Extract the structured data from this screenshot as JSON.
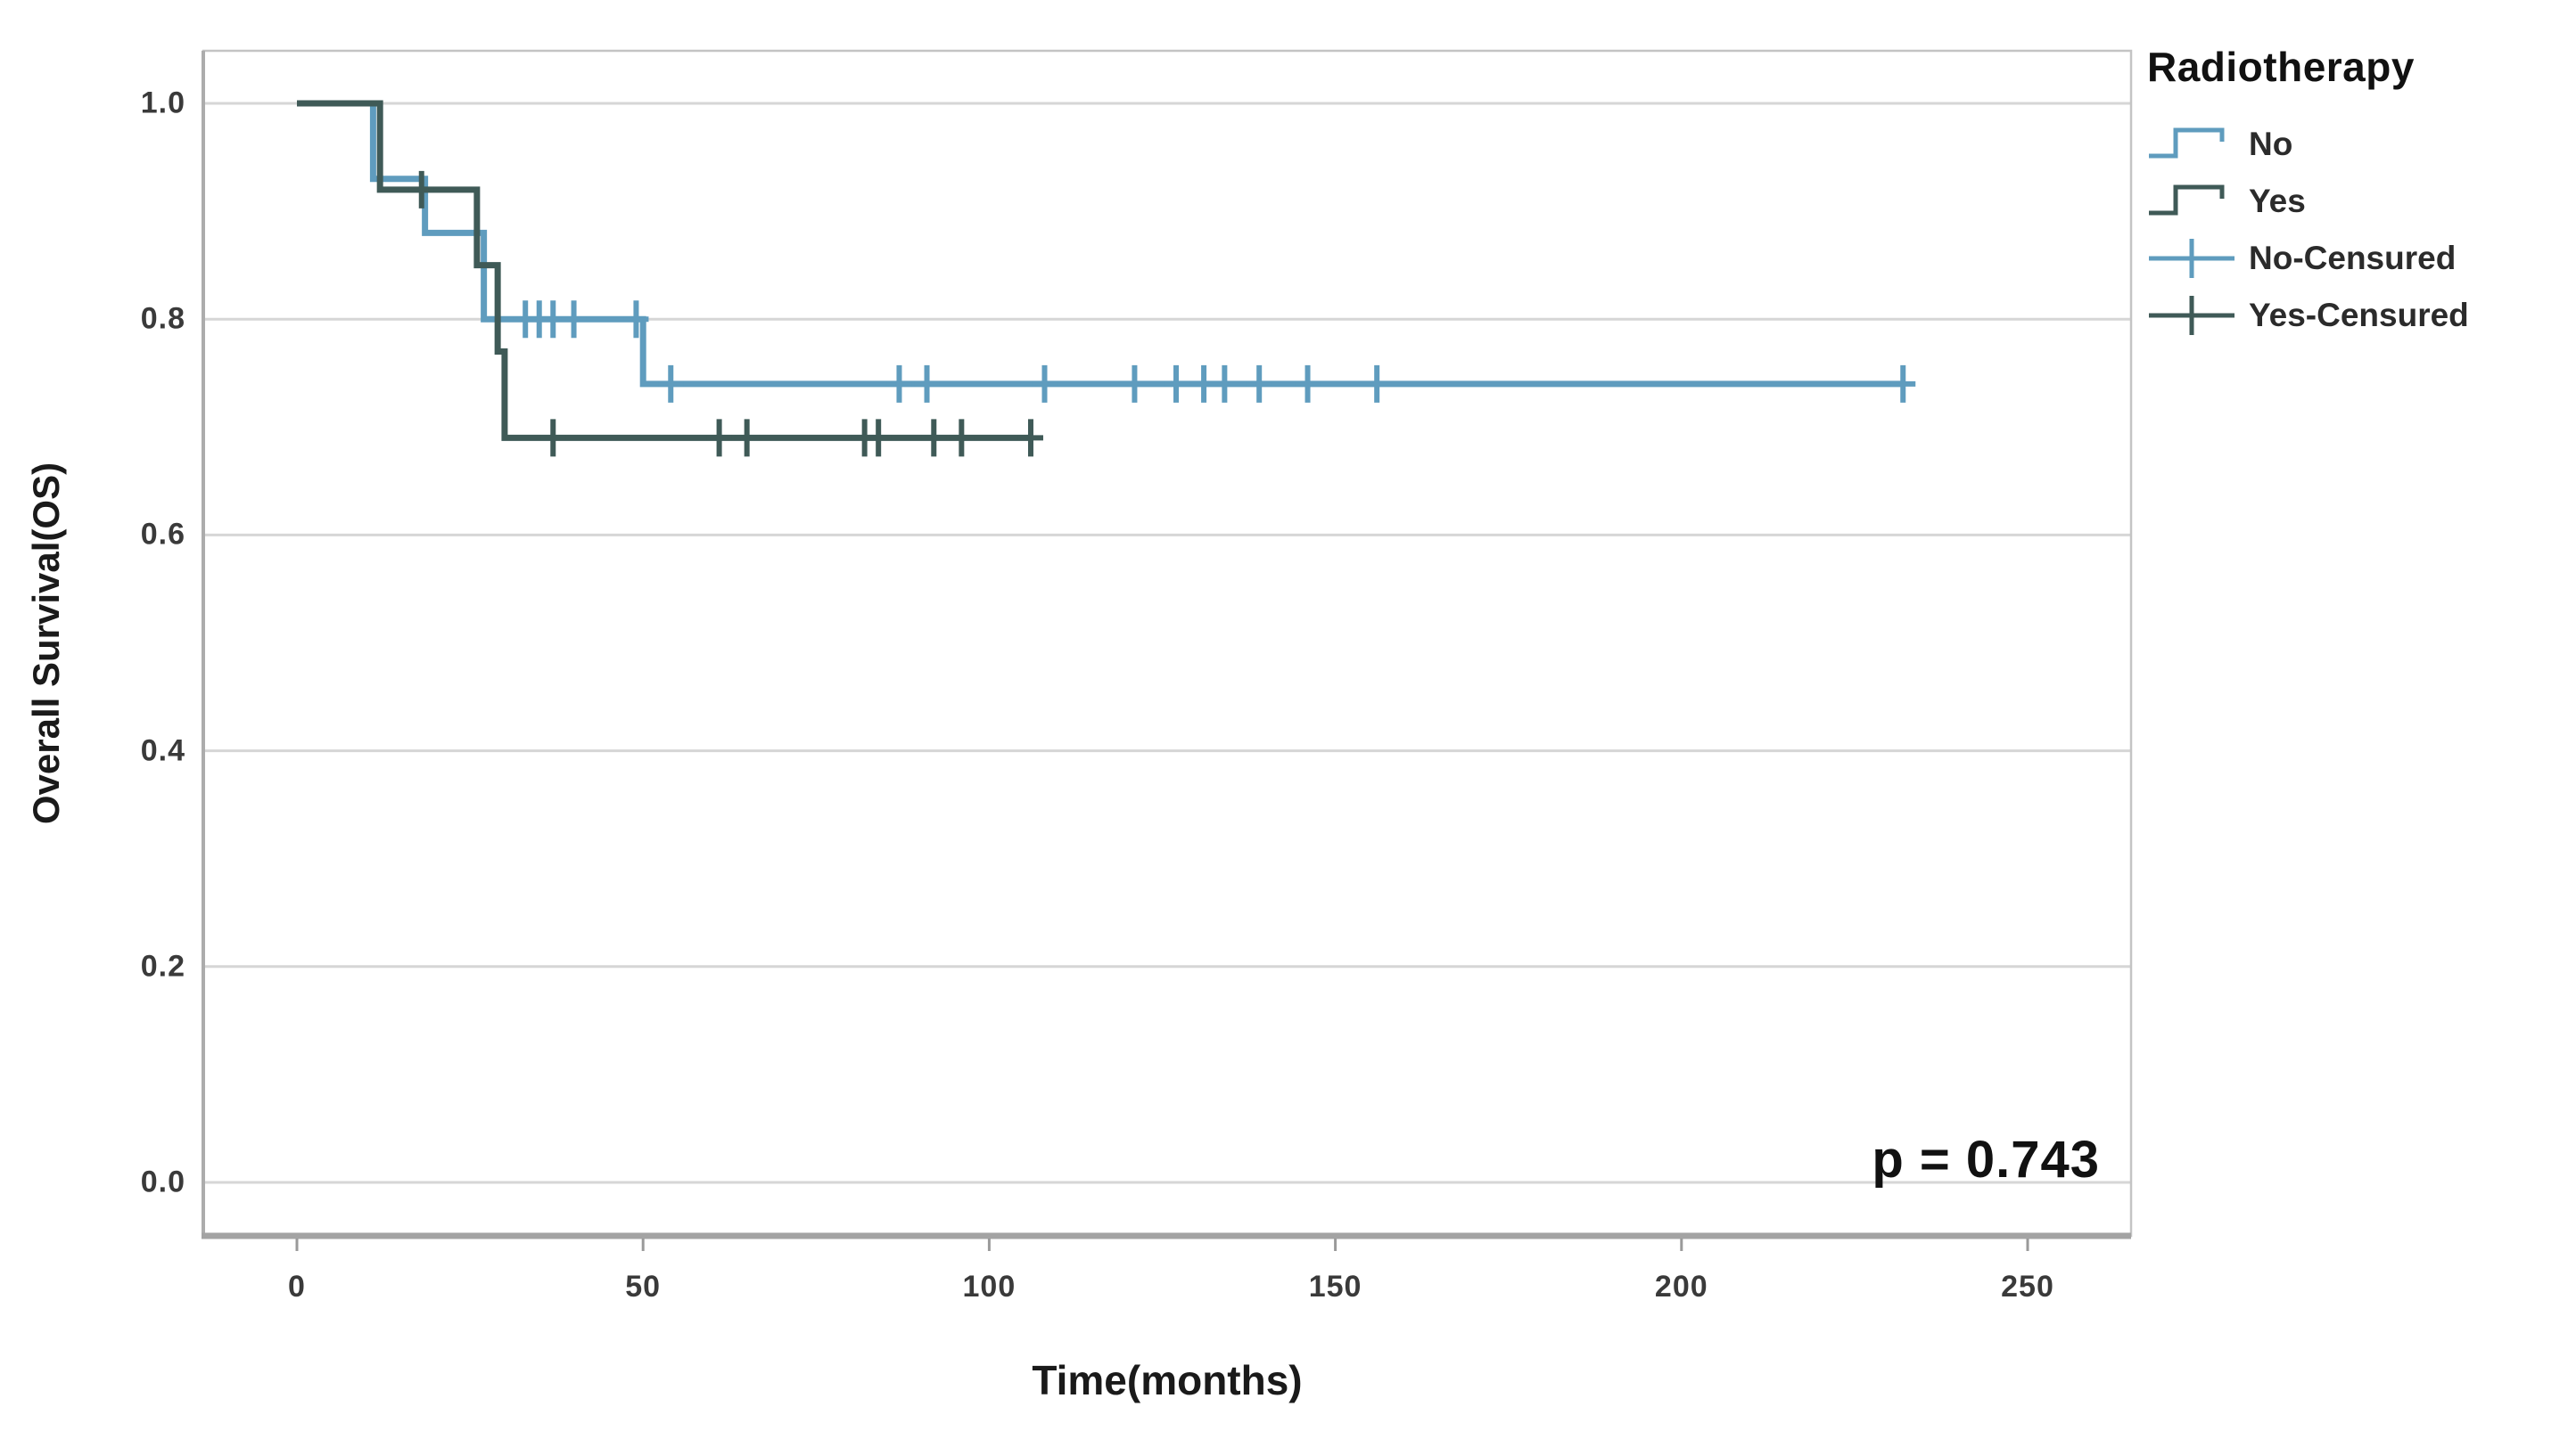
{
  "page": {
    "background": "#ffffff",
    "p_value_label": "p = 0.743"
  },
  "chart_data": {
    "type": "line",
    "subtype": "kaplan-meier-step",
    "title": "",
    "xlabel": "Time(months)",
    "ylabel": "Overall Survival(OS)",
    "xlim": [
      -13,
      265
    ],
    "ylim": [
      -0.05,
      1.05
    ],
    "xticks": [
      0,
      50,
      100,
      150,
      200,
      250
    ],
    "yticks": [
      "1.0",
      "0.8",
      "0.6",
      "0.4",
      "0.2",
      "0.0"
    ],
    "ytick_values": [
      1.0,
      0.8,
      0.6,
      0.4,
      0.2,
      0.0
    ],
    "grid": "horizontal",
    "legend_position": "top-right-outside",
    "legend_title": "Radiotherapy",
    "annotation": "p = 0.743",
    "series": [
      {
        "name": "No",
        "color": "#5F9CBE",
        "steps": [
          [
            0,
            1.0
          ],
          [
            11,
            0.93
          ],
          [
            18.5,
            0.88
          ],
          [
            27,
            0.8
          ],
          [
            50,
            0.74
          ]
        ],
        "end_month": 232,
        "censored": [
          [
            33,
            0.8
          ],
          [
            35,
            0.8
          ],
          [
            37,
            0.8
          ],
          [
            40,
            0.8
          ],
          [
            49,
            0.8
          ],
          [
            54,
            0.74
          ],
          [
            87,
            0.74
          ],
          [
            91,
            0.74
          ],
          [
            108,
            0.74
          ],
          [
            121,
            0.74
          ],
          [
            127,
            0.74
          ],
          [
            131,
            0.74
          ],
          [
            134,
            0.74
          ],
          [
            139,
            0.74
          ],
          [
            146,
            0.74
          ],
          [
            156,
            0.74
          ],
          [
            232,
            0.74
          ]
        ]
      },
      {
        "name": "Yes",
        "color": "#3F5A57",
        "steps": [
          [
            0,
            1.0
          ],
          [
            12,
            0.92
          ],
          [
            26,
            0.85
          ],
          [
            29,
            0.77
          ],
          [
            30,
            0.69
          ]
        ],
        "end_month": 106,
        "censored": [
          [
            18,
            0.92
          ],
          [
            37,
            0.69
          ],
          [
            61,
            0.69
          ],
          [
            65,
            0.69
          ],
          [
            82,
            0.69
          ],
          [
            84,
            0.69
          ],
          [
            92,
            0.69
          ],
          [
            96,
            0.69
          ],
          [
            106,
            0.69
          ]
        ]
      }
    ],
    "legend_entries": [
      {
        "label": "No",
        "series": 0,
        "glyph": "step"
      },
      {
        "label": "Yes",
        "series": 1,
        "glyph": "step"
      },
      {
        "label": "No-Censured",
        "series": 0,
        "glyph": "censor"
      },
      {
        "label": "Yes-Censured",
        "series": 1,
        "glyph": "censor"
      }
    ],
    "colors": {
      "grid": "#D6D6D6",
      "frame": "#C4C4C4",
      "axis_bottom": "#A3A3A3",
      "axis_left": "#ACACAC",
      "tick_stub": "#9A9A9A"
    }
  }
}
